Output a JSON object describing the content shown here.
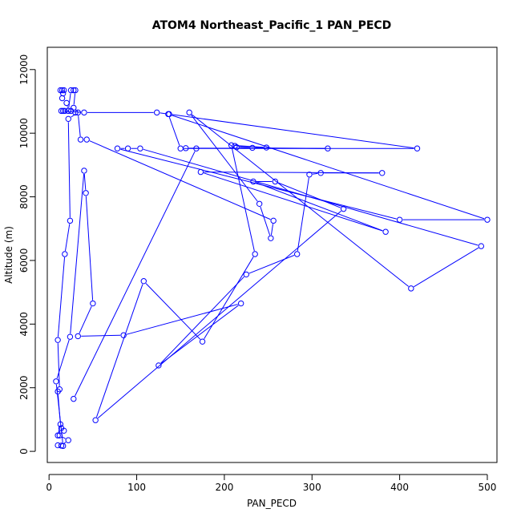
{
  "chart_data": {
    "type": "scatter",
    "title": "ATOM4 Northeast_Pacific_1 PAN_PECD",
    "xlabel": "PAN_PECD",
    "ylabel": "Altitude (m)",
    "xlim": [
      -2,
      511
    ],
    "ylim": [
      -350,
      12700
    ],
    "x_ticks": [
      0,
      100,
      200,
      300,
      400,
      500
    ],
    "y_ticks": [
      0,
      2000,
      4000,
      6000,
      8000,
      10000,
      12000
    ],
    "grid": false,
    "legend": "none",
    "series_color": "#0000ff",
    "marker": "open-circle",
    "connect_points": true,
    "points": [
      {
        "x": 13,
        "y": 11350
      },
      {
        "x": 17,
        "y": 11350
      },
      {
        "x": 15,
        "y": 11350
      },
      {
        "x": 16,
        "y": 11250
      },
      {
        "x": 15,
        "y": 11100
      },
      {
        "x": 20,
        "y": 10950
      },
      {
        "x": 22,
        "y": 10700
      },
      {
        "x": 25,
        "y": 11350
      },
      {
        "x": 28,
        "y": 11350
      },
      {
        "x": 30,
        "y": 11350
      },
      {
        "x": 28,
        "y": 10800
      },
      {
        "x": 30,
        "y": 10650
      },
      {
        "x": 25,
        "y": 10700
      },
      {
        "x": 18,
        "y": 10700
      },
      {
        "x": 16,
        "y": 10700
      },
      {
        "x": 14,
        "y": 10700
      },
      {
        "x": 40,
        "y": 10650
      },
      {
        "x": 123,
        "y": 10650
      },
      {
        "x": 137,
        "y": 10600
      },
      {
        "x": 420,
        "y": 9520
      },
      {
        "x": 150,
        "y": 9520
      },
      {
        "x": 136,
        "y": 10600
      },
      {
        "x": 500,
        "y": 7280
      },
      {
        "x": 400,
        "y": 7280
      },
      {
        "x": 78,
        "y": 9520
      },
      {
        "x": 90,
        "y": 9520
      },
      {
        "x": 104,
        "y": 9520
      },
      {
        "x": 493,
        "y": 6450
      },
      {
        "x": 413,
        "y": 5120
      },
      {
        "x": 160,
        "y": 10650
      },
      {
        "x": 240,
        "y": 7780
      },
      {
        "x": 253,
        "y": 6700
      },
      {
        "x": 256,
        "y": 7250
      },
      {
        "x": 43,
        "y": 9800
      },
      {
        "x": 36,
        "y": 9800
      },
      {
        "x": 33,
        "y": 10650
      },
      {
        "x": 22,
        "y": 10450
      },
      {
        "x": 24,
        "y": 7250
      },
      {
        "x": 18,
        "y": 6200
      },
      {
        "x": 10,
        "y": 3500
      },
      {
        "x": 12,
        "y": 1950
      },
      {
        "x": 10,
        "y": 1880
      },
      {
        "x": 13,
        "y": 850
      },
      {
        "x": 10,
        "y": 500
      },
      {
        "x": 14,
        "y": 730
      },
      {
        "x": 17,
        "y": 650
      },
      {
        "x": 12,
        "y": 500
      },
      {
        "x": 22,
        "y": 350
      },
      {
        "x": 14,
        "y": 180
      },
      {
        "x": 10,
        "y": 190
      },
      {
        "x": 16,
        "y": 170
      },
      {
        "x": 8,
        "y": 2200
      },
      {
        "x": 24,
        "y": 3600
      },
      {
        "x": 40,
        "y": 8820
      },
      {
        "x": 42,
        "y": 8120
      },
      {
        "x": 50,
        "y": 4650
      },
      {
        "x": 33,
        "y": 3620
      },
      {
        "x": 85,
        "y": 3650
      },
      {
        "x": 219,
        "y": 4650
      },
      {
        "x": 125,
        "y": 2700
      },
      {
        "x": 225,
        "y": 5560
      },
      {
        "x": 283,
        "y": 6200
      },
      {
        "x": 297,
        "y": 8700
      },
      {
        "x": 310,
        "y": 8750
      },
      {
        "x": 380,
        "y": 8750
      },
      {
        "x": 173,
        "y": 8780
      },
      {
        "x": 384,
        "y": 6900
      },
      {
        "x": 233,
        "y": 8480
      },
      {
        "x": 258,
        "y": 8480
      },
      {
        "x": 336,
        "y": 7620
      },
      {
        "x": 53,
        "y": 980
      },
      {
        "x": 108,
        "y": 5350
      },
      {
        "x": 175,
        "y": 3450
      },
      {
        "x": 235,
        "y": 6200
      },
      {
        "x": 208,
        "y": 9620
      },
      {
        "x": 248,
        "y": 9550
      },
      {
        "x": 212,
        "y": 9600
      },
      {
        "x": 214,
        "y": 9560
      },
      {
        "x": 232,
        "y": 9540
      },
      {
        "x": 318,
        "y": 9520
      },
      {
        "x": 156,
        "y": 9530
      },
      {
        "x": 168,
        "y": 9520
      },
      {
        "x": 28,
        "y": 1650
      }
    ]
  }
}
